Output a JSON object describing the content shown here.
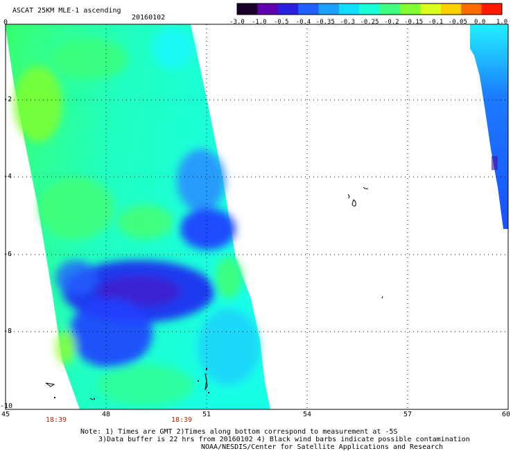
{
  "title": "ASCAT 25KM MLE-1 ascending",
  "date": "20160102",
  "colorbar": {
    "labels": [
      "-3.0",
      "-1.0",
      "-0.5",
      "-0.4",
      "-0.35",
      "-0.3",
      "-0.25",
      "-0.2",
      "-0.15",
      "-0.1",
      "-0.05",
      "0.0",
      "1.0"
    ],
    "colors": [
      "#1a0028",
      "#6000b0",
      "#2a20e0",
      "#2060ff",
      "#1aa0ff",
      "#10ddff",
      "#18ffd8",
      "#40ff80",
      "#80ff30",
      "#d8ff20",
      "#ffd000",
      "#ff6a00",
      "#ff1a00"
    ]
  },
  "map": {
    "lon_range": [
      45,
      60
    ],
    "lat_range": [
      -10,
      0
    ],
    "x_ticks": [
      "45",
      "48",
      "51",
      "54",
      "57",
      "60"
    ],
    "y_ticks": [
      "0",
      "-2",
      "-4",
      "-6",
      "-8",
      "-10"
    ],
    "pass_times": [
      "18:39",
      "18:39"
    ],
    "colors": {
      "land": "#000000",
      "grid": "#000000",
      "no_data": "#ffffff"
    }
  },
  "notes": {
    "line1": "Note: 1) Times are GMT 2)Times along bottom correspond to measurement at -5S",
    "line2": "3)Data buffer is 22 hrs from 20160102 4) Black wind barbs indicate possible contamination",
    "credit": "NOAA/NESDIS/Center for Satellite Applications and Research"
  }
}
